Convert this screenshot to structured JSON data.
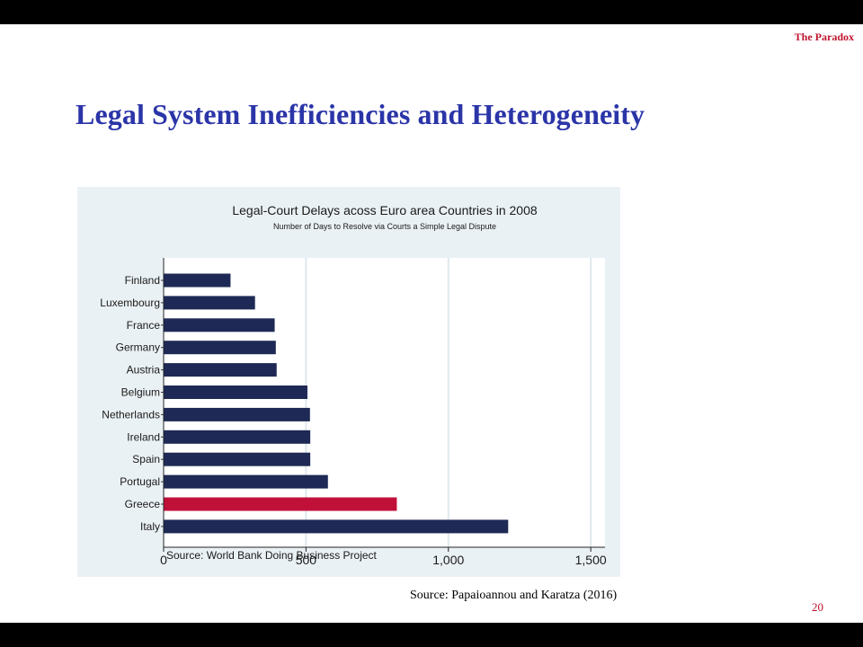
{
  "header": {
    "section_tag": "The Paradox"
  },
  "slide": {
    "title": "Legal System Inefficiencies and Heterogeneity",
    "figure_source": "Source: Papaioannou and Karatza (2016)",
    "page_number": "20"
  },
  "chart_data": {
    "type": "bar",
    "orientation": "horizontal",
    "title": "Legal-Court Delays acoss Euro area Countries in 2008",
    "subtitle": "Number of Days to Resolve via Courts a Simple Legal Dispute",
    "note": "Source: World Bank Doing Business Project",
    "categories": [
      "Finland",
      "Luxembourg",
      "France",
      "Germany",
      "Austria",
      "Belgium",
      "Netherlands",
      "Ireland",
      "Spain",
      "Portugal",
      "Greece",
      "Italy"
    ],
    "values": [
      235,
      321,
      390,
      394,
      397,
      505,
      514,
      515,
      515,
      577,
      819,
      1210
    ],
    "highlight": "Greece",
    "xlim": [
      0,
      1550
    ],
    "xticks": [
      0,
      500,
      1000,
      1500
    ],
    "xtick_labels": [
      "0",
      "500",
      "1,000",
      "1,500"
    ],
    "grid": true,
    "colors": {
      "bar": "#1e2a55",
      "highlight": "#c0103a",
      "panel": "#eaf1f4",
      "plot": "#ffffff",
      "grid": "#dfe8ec"
    }
  }
}
